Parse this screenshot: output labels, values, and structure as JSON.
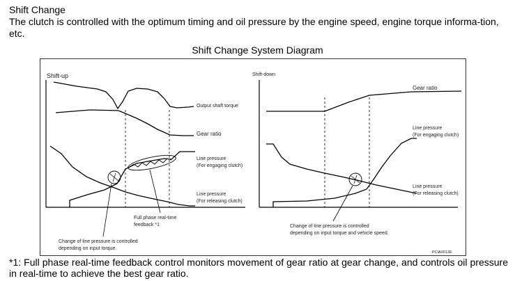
{
  "section": {
    "heading": "Shift Change",
    "intro": "The clutch is controlled with the optimum timing and oil pressure by the engine speed, engine torque informa-tion, etc."
  },
  "diagram": {
    "title": "Shift Change System Diagram",
    "left_panel": {
      "title": "Shift-up",
      "labels": {
        "output_shaft_torque": "Output shaft torque",
        "gear_ratio": "Gear ratio",
        "line_pressure_engaging_1": "Line pressure",
        "line_pressure_engaging_2": "(For engaging clutch)",
        "line_pressure_releasing_1": "Line pressure",
        "line_pressure_releasing_2": "(For releasing clutch)",
        "feedback_1": "Full phase real-time",
        "feedback_2": "feedback *1",
        "note_1": "Change of line pressure is controlled",
        "note_2": "depending on input torque."
      }
    },
    "right_panel": {
      "title": "Shift-down",
      "labels": {
        "gear_ratio": "Gear ratio",
        "line_pressure_engaging_1": "Line pressure",
        "line_pressure_engaging_2": "(For engaging clutch)",
        "line_pressure_releasing_1": "Line pressure",
        "line_pressure_releasing_2": "(For releasing clutch)",
        "note_1": "Change of line pressure is controlled",
        "note_2": "depending on input torque and vehicle speed."
      }
    },
    "figure_code": "PCIA0013E"
  },
  "footnote": "*1: Full phase real-time feedback control monitors movement of gear ratio at gear change, and controls oil pressure in real-time to achieve the best gear ratio."
}
